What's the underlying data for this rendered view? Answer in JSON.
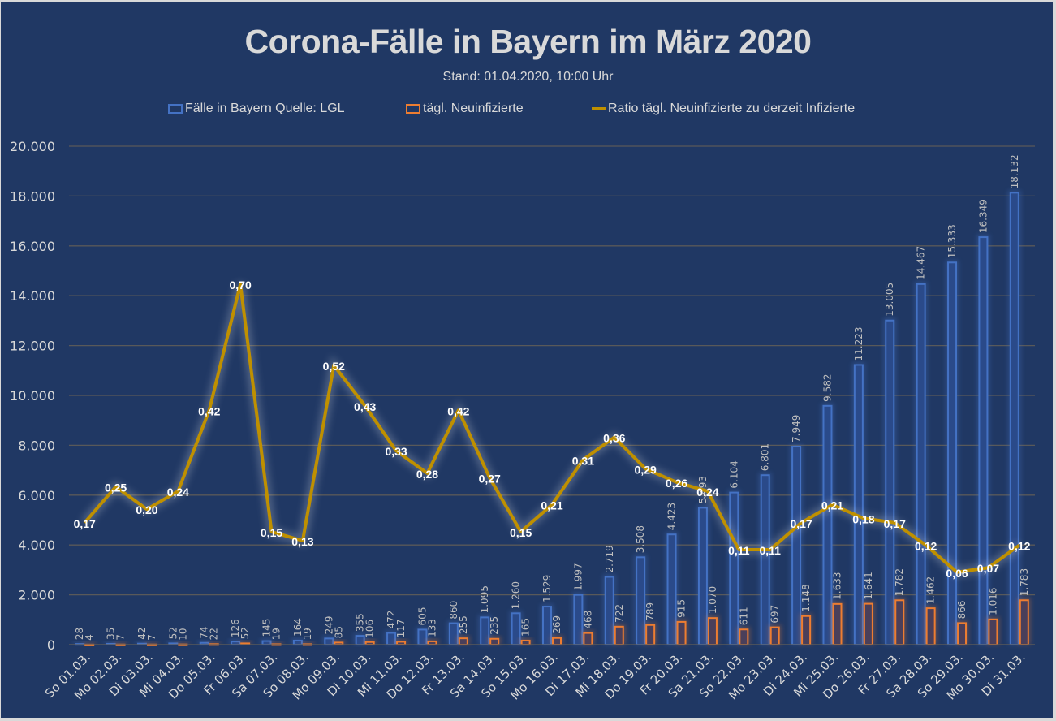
{
  "title": "Corona-Fälle in Bayern im März 2020",
  "subtitle": "Stand: 01.04.2020, 10:00 Uhr",
  "legend": [
    {
      "label": "Fälle in Bayern Quelle: LGL",
      "color": "#4472c4",
      "kind": "box"
    },
    {
      "label": "tägl. Neuinfizierte",
      "color": "#ed7d31",
      "kind": "box"
    },
    {
      "label": "Ratio tägl. Neuinfizierte zu derzeit Infizierte",
      "color": "#bf9000",
      "kind": "line"
    }
  ],
  "colors": {
    "background": "#203864",
    "gridline": "#595959",
    "text": "#d9d9d9",
    "cases": "#4472c4",
    "new": "#ed7d31",
    "ratio": "#bf9000"
  },
  "chart_data": {
    "type": "bar",
    "title": "Corona-Fälle in Bayern im März 2020",
    "subtitle": "Stand: 01.04.2020, 10:00 Uhr",
    "xlabel": "",
    "ylabel": "",
    "ylim": [
      0,
      20000
    ],
    "yticks": [
      "0",
      "2.000",
      "4.000",
      "6.000",
      "8.000",
      "10.000",
      "12.000",
      "14.000",
      "16.000",
      "18.000",
      "20.000"
    ],
    "grid": true,
    "legend_position": "top",
    "categories": [
      "So 01.03.",
      "Mo 02.03.",
      "Di 03.03.",
      "Mi 04.03.",
      "Do 05.03.",
      "Fr 06.03.",
      "Sa 07.03.",
      "So 08.03.",
      "Mo 09.03.",
      "Di 10.03.",
      "Mi 11.03.",
      "Do 12.03.",
      "Fr 13.03.",
      "Sa 14.03.",
      "So 15.03.",
      "Mo 16.03.",
      "Di 17.03.",
      "Mi 18.03.",
      "Do 19.03.",
      "Fr 20.03.",
      "Sa 21.03.",
      "So 22.03.",
      "Mo 23.03.",
      "Di 24.03.",
      "Mi 25.03.",
      "Do 26.03.",
      "Fr 27.03.",
      "Sa 28.03.",
      "So 29.03.",
      "Mo 30.03.",
      "Di 31.03."
    ],
    "series": [
      {
        "name": "Fälle in Bayern Quelle: LGL",
        "type": "bar",
        "color": "#4472c4",
        "values": [
          28,
          35,
          42,
          52,
          74,
          126,
          145,
          164,
          249,
          355,
          472,
          605,
          860,
          1095,
          1260,
          1529,
          1997,
          2719,
          3508,
          4423,
          5493,
          6104,
          6801,
          7949,
          9582,
          11223,
          13005,
          14467,
          15333,
          16349,
          18132
        ],
        "labels": [
          "28",
          "35",
          "42",
          "52",
          "74",
          "126",
          "145",
          "164",
          "249",
          "355",
          "472",
          "605",
          "860",
          "1.095",
          "1.260",
          "1.529",
          "1.997",
          "2.719",
          "3.508",
          "4.423",
          "5.493",
          "6.104",
          "6.801",
          "7.949",
          "9.582",
          "11.223",
          "13.005",
          "14.467",
          "15.333",
          "16.349",
          "18.132"
        ]
      },
      {
        "name": "tägl. Neuinfizierte",
        "type": "bar",
        "color": "#ed7d31",
        "values": [
          4,
          7,
          7,
          10,
          22,
          52,
          19,
          19,
          85,
          106,
          117,
          133,
          255,
          235,
          165,
          269,
          468,
          722,
          789,
          915,
          1070,
          611,
          697,
          1148,
          1633,
          1641,
          1782,
          1462,
          866,
          1016,
          1783
        ],
        "labels": [
          "4",
          "7",
          "7",
          "10",
          "22",
          "52",
          "19",
          "19",
          "85",
          "106",
          "117",
          "133",
          "255",
          "235",
          "165",
          "269",
          "468",
          "722",
          "789",
          "915",
          "1.070",
          "611",
          "697",
          "1.148",
          "1.633",
          "1.641",
          "1.782",
          "1.462",
          "866",
          "1.016",
          "1.783"
        ]
      },
      {
        "name": "Ratio tägl. Neuinfizierte zu derzeit Infizierte",
        "type": "line",
        "color": "#bf9000",
        "axis": "secondary",
        "values": [
          0.17,
          0.25,
          0.2,
          0.24,
          0.42,
          0.7,
          0.15,
          0.13,
          0.52,
          0.43,
          0.33,
          0.28,
          0.42,
          0.27,
          0.15,
          0.21,
          0.31,
          0.36,
          0.29,
          0.26,
          0.24,
          0.11,
          0.11,
          0.17,
          0.21,
          0.18,
          0.17,
          0.12,
          0.06,
          0.07,
          0.12
        ],
        "labels": [
          "0,17",
          "0,25",
          "0,20",
          "0,24",
          "0,42",
          "0,70",
          "0,15",
          "0,13",
          "0,52",
          "0,43",
          "0,33",
          "0,28",
          "0,42",
          "0,27",
          "0,15",
          "0,21",
          "0,31",
          "0,36",
          "0,29",
          "0,26",
          "0,24",
          "0,11",
          "0,11",
          "0,17",
          "0,21",
          "0,18",
          "0,17",
          "0,12",
          "0,06",
          "0,07",
          "0,12"
        ]
      }
    ]
  }
}
